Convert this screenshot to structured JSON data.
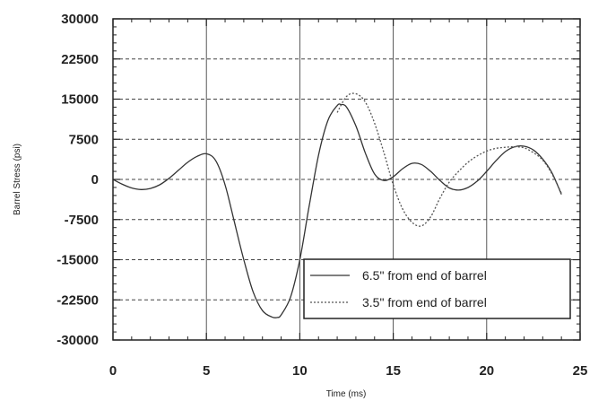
{
  "chart_data": {
    "type": "line",
    "title": "",
    "xlabel": "Time (ms)",
    "ylabel": "Barrel Stress (psi)",
    "xlim": [
      0,
      25
    ],
    "ylim": [
      -30000,
      30000
    ],
    "x_ticks": [
      0,
      5,
      10,
      15,
      20,
      25
    ],
    "x_tick_labels": [
      "0",
      "5",
      "10",
      "15",
      "20",
      "25"
    ],
    "y_ticks": [
      30000,
      22500,
      15000,
      7500,
      0,
      -7500,
      -15000,
      -22500,
      -30000
    ],
    "y_tick_labels": [
      "30000",
      "22500",
      "15000",
      "7500",
      "0",
      "-7500",
      "-15000",
      "-22500",
      "-30000"
    ],
    "grid": {
      "vertical": "solid",
      "horizontal": "dashed"
    },
    "legend_position": "bottom-right",
    "series": [
      {
        "name": "6.5\" from end of barrel",
        "style": "solid",
        "color": "#333333",
        "x": [
          0,
          0.5,
          1,
          1.5,
          2,
          2.5,
          3,
          3.5,
          4,
          4.5,
          5,
          5.5,
          6,
          6.5,
          7,
          7.5,
          8,
          8.5,
          8.8,
          9,
          9.5,
          10,
          10.5,
          11,
          11.5,
          12,
          12.2,
          12.5,
          13,
          13.5,
          14,
          14.5,
          15,
          15.5,
          16,
          16.5,
          17,
          17.5,
          18,
          18.5,
          19,
          19.5,
          20,
          20.5,
          21,
          21.5,
          22,
          22.5,
          23,
          23.5,
          24
        ],
        "y": [
          0,
          -900,
          -1600,
          -1900,
          -1700,
          -1000,
          200,
          1700,
          3200,
          4300,
          4800,
          3500,
          -1000,
          -8000,
          -15000,
          -21000,
          -24500,
          -25700,
          -25800,
          -25300,
          -22000,
          -15000,
          -5000,
          4500,
          11000,
          13800,
          14000,
          13500,
          10000,
          5000,
          1000,
          -200,
          500,
          2000,
          3000,
          2800,
          1500,
          -200,
          -1600,
          -2000,
          -1500,
          -300,
          1500,
          3500,
          5200,
          6100,
          6200,
          5500,
          3800,
          1200,
          -2800
        ]
      },
      {
        "name": "3.5\" from end of barrel",
        "style": "dotted",
        "color": "#555555",
        "x": [
          12,
          12.5,
          13,
          13.5,
          14,
          14.5,
          15,
          15.5,
          16,
          16.5,
          17,
          17.5,
          18,
          18.5,
          19,
          19.5,
          20,
          20.5,
          21,
          21.5,
          22,
          22.5,
          23,
          23.5,
          24
        ],
        "y": [
          12500,
          15500,
          16000,
          14500,
          10500,
          5000,
          -1000,
          -5500,
          -8000,
          -8700,
          -7000,
          -3500,
          -500,
          1500,
          3200,
          4400,
          5300,
          5800,
          6000,
          6100,
          5900,
          5000,
          3600,
          1000,
          -2600
        ]
      }
    ]
  },
  "legend": {
    "items": [
      "6.5\" from end of barrel",
      "3.5\" from end of barrel"
    ]
  }
}
